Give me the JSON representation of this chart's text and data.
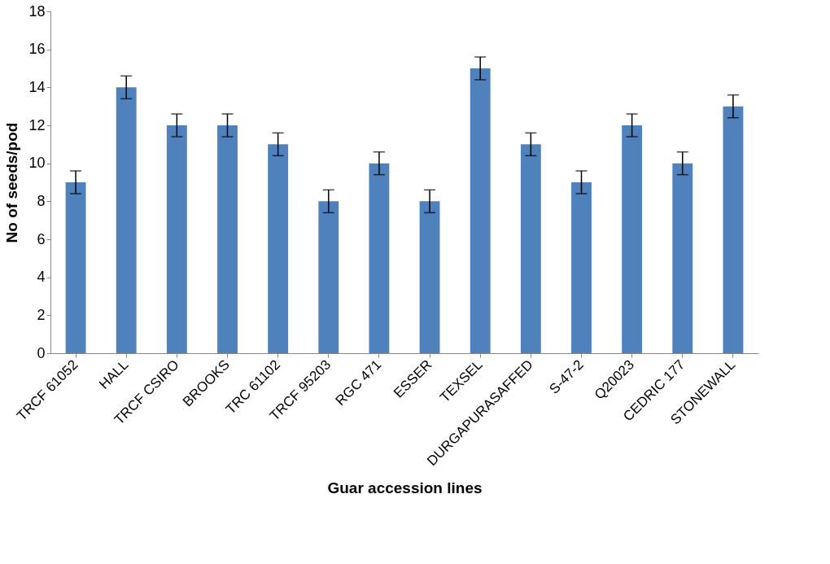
{
  "chart_data": {
    "type": "bar",
    "xlabel": "Guar accession lines",
    "ylabel": "No of seeds/pod",
    "categories": [
      "TRCF 61052",
      "HALL",
      "TRCF CSIRO",
      "BROOKS",
      "TRC 61102",
      "TRCF 95203",
      "RGC 471",
      "ESSER",
      "TEXSEL",
      "DURGAPURASAFFED",
      "S-47-2",
      "Q20023",
      "CEDRIC 177",
      "STONEWALL"
    ],
    "values": [
      9,
      14,
      12,
      12,
      11,
      8,
      10,
      8,
      15,
      11,
      9,
      12,
      10,
      13
    ],
    "errors": [
      0.6,
      0.6,
      0.6,
      0.6,
      0.6,
      0.6,
      0.6,
      0.6,
      0.6,
      0.6,
      0.6,
      0.6,
      0.6,
      0.6
    ],
    "color": "#4f81bd",
    "ylim": [
      0,
      18
    ],
    "yticks": [
      0,
      2,
      4,
      6,
      8,
      10,
      12,
      14,
      16,
      18
    ],
    "grid": false
  }
}
